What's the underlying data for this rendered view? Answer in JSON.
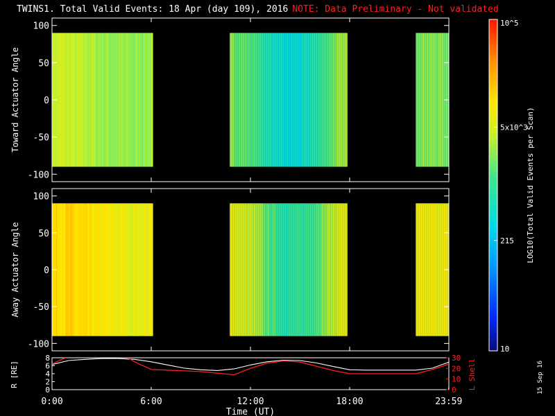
{
  "header": {
    "title": "TWINS1. Total Valid Events: 18 Apr (day 109), 2016",
    "note": "NOTE: Data Preliminary - Not validated"
  },
  "footer": {
    "datestamp": "15 Sep 16"
  },
  "chart_data": [
    {
      "type": "heatmap",
      "ylabel": "Toward Actuator Angle",
      "ylim": [
        -110,
        110
      ],
      "yticks": [
        100,
        50,
        0,
        -50,
        -100
      ],
      "xlim": [
        0,
        24
      ],
      "coverage_hours": [
        [
          0.0,
          6.1
        ],
        [
          10.75,
          17.8
        ],
        [
          22.0,
          23.99
        ]
      ],
      "profile_hours": [
        0,
        1,
        2,
        3,
        4,
        5,
        6,
        11,
        12,
        13,
        14,
        15,
        16,
        17,
        17.8,
        22,
        23,
        24
      ],
      "profile_log_events": [
        3.65,
        3.6,
        3.55,
        3.45,
        3.4,
        3.4,
        3.45,
        3.3,
        3.15,
        2.85,
        2.55,
        2.6,
        2.9,
        3.3,
        3.45,
        3.4,
        3.35,
        3.35
      ]
    },
    {
      "type": "heatmap",
      "ylabel": "Away Actuator Angle",
      "ylim": [
        -110,
        110
      ],
      "yticks": [
        100,
        50,
        0,
        -50,
        -100
      ],
      "xlim": [
        0,
        24
      ],
      "coverage_hours": [
        [
          0.0,
          6.1
        ],
        [
          10.75,
          17.8
        ],
        [
          22.0,
          23.99
        ]
      ],
      "profile_hours": [
        0,
        1,
        2,
        3,
        4,
        5,
        6,
        11,
        12,
        13,
        14,
        15,
        16,
        17,
        17.8,
        22,
        23,
        24
      ],
      "profile_log_events": [
        4.05,
        4.1,
        4.0,
        3.95,
        3.85,
        3.8,
        3.85,
        3.8,
        3.6,
        3.2,
        2.9,
        2.95,
        3.2,
        3.6,
        3.85,
        3.8,
        3.85,
        3.85
      ]
    },
    {
      "type": "line",
      "ylabel": "R [RE]",
      "y2label": "L Shell",
      "xlabel": "Time (UT)",
      "xticks": [
        "0:00",
        "6:00",
        "12:00",
        "18:00",
        "23:59"
      ],
      "xtick_hours": [
        0,
        6,
        12,
        18,
        23.99
      ],
      "ylim": [
        0,
        8
      ],
      "yticks": [
        0,
        2,
        4,
        6,
        8
      ],
      "y2lim": [
        0,
        30
      ],
      "y2ticks": [
        0,
        10,
        20,
        30
      ],
      "series": [
        {
          "color": "#ffffff",
          "axis": "left",
          "x": [
            0,
            1,
            2,
            3,
            4,
            5,
            6,
            7,
            8,
            9,
            10,
            11,
            12,
            13,
            14,
            15,
            16,
            17,
            18,
            19,
            20,
            21,
            22,
            23,
            24
          ],
          "y": [
            6.3,
            7.3,
            7.6,
            7.8,
            7.8,
            7.6,
            7.0,
            6.2,
            5.4,
            5.0,
            4.8,
            5.2,
            6.2,
            7.0,
            7.4,
            7.3,
            6.7,
            5.8,
            5.0,
            4.9,
            4.9,
            4.9,
            4.9,
            5.4,
            6.9
          ]
        },
        {
          "color": "#ff2020",
          "axis": "right",
          "x": [
            0,
            0.5,
            1,
            4.5,
            5,
            6,
            9,
            11,
            12,
            13,
            14,
            15,
            16,
            17,
            18,
            22,
            23,
            24
          ],
          "y": [
            24,
            28,
            31,
            31,
            26,
            19,
            17,
            14,
            20,
            25,
            27,
            26,
            22,
            18,
            15,
            15,
            19,
            24
          ]
        }
      ]
    },
    {
      "type": "colorbar",
      "title": "LOG10(Total Valid Events per Scan)",
      "scale": "log",
      "range": [
        10,
        100000
      ],
      "tick_labels": [
        "10",
        "215",
        "5x10^3",
        "10^5"
      ],
      "tick_values": [
        10,
        215,
        5000,
        100000
      ]
    }
  ]
}
